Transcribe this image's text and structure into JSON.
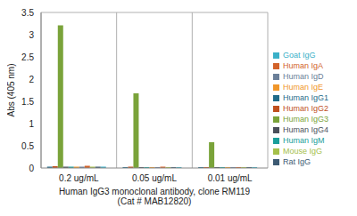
{
  "chart_data": {
    "type": "bar",
    "x_label": "Human IgG3 monoclonal antibody, clone RM119\n(Cat # MAB12820)",
    "y_label": "Abs (405 nm)",
    "categories": [
      "0.2 ug/mL",
      "0.05 ug/mL",
      "0.01 ug/mL"
    ],
    "series": [
      {
        "name": "Human IgG1",
        "color": "#1f6b8a",
        "values": [
          0.03,
          0.02,
          0.02
        ]
      },
      {
        "name": "Human IgG2",
        "color": "#c0501e",
        "values": [
          0.04,
          0.03,
          0.02
        ]
      },
      {
        "name": "Human IgG3",
        "color": "#7aa33a",
        "values": [
          3.21,
          1.68,
          0.58
        ]
      },
      {
        "name": "Human IgG4",
        "color": "#4a4f5a",
        "values": [
          0.03,
          0.02,
          0.02
        ]
      },
      {
        "name": "Human IgM",
        "color": "#1a9e9a",
        "values": [
          0.03,
          0.02,
          0.02
        ]
      },
      {
        "name": "Human IgE",
        "color": "#f0962a",
        "values": [
          0.03,
          0.02,
          0.02
        ]
      },
      {
        "name": "Human IgD",
        "color": "#6b7f99",
        "values": [
          0.03,
          0.02,
          0.02
        ]
      },
      {
        "name": "Human IgA",
        "color": "#d2622a",
        "values": [
          0.05,
          0.03,
          0.02
        ]
      },
      {
        "name": "Mouse IgG",
        "color": "#a5c04a",
        "values": [
          0.03,
          0.02,
          0.02
        ]
      },
      {
        "name": "Rat IgG",
        "color": "#3d5a73",
        "values": [
          0.03,
          0.02,
          0.02
        ]
      },
      {
        "name": "Goat IgG",
        "color": "#3ab0c8",
        "values": [
          0.03,
          0.02,
          0.02
        ]
      }
    ],
    "ylim": [
      0,
      3.5
    ],
    "yticks": [
      0,
      0.5,
      1,
      1.5,
      2,
      2.5,
      3,
      3.5
    ],
    "grid": true,
    "legend": "right"
  }
}
